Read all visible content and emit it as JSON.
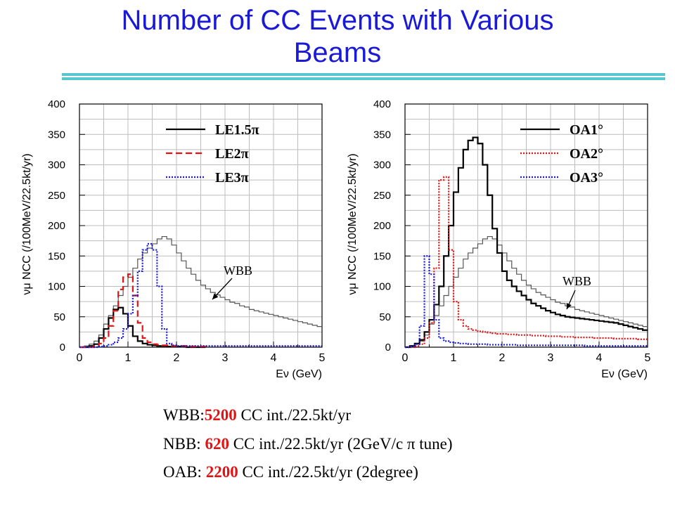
{
  "title": {
    "line1": "Number of CC Events with Various",
    "line2": "Beams"
  },
  "colors": {
    "title": "#1a1ad6",
    "rule": "#55c8cf",
    "highlight": "#e01414"
  },
  "chart_data": [
    {
      "type": "line",
      "xlabel": "Eν (GeV)",
      "ylabel": "νμ NCC (/100MeV/22.5kt/yr)",
      "xlim": [
        0,
        5
      ],
      "ylim": [
        0,
        400
      ],
      "xticks": [
        "0",
        "1",
        "2",
        "3",
        "4",
        "5"
      ],
      "yticks": [
        "0",
        "50",
        "100",
        "150",
        "200",
        "250",
        "300",
        "350",
        "400"
      ],
      "grid": true,
      "legend_position": "top-left",
      "annotation": "WBB",
      "series": [
        {
          "name": "WBB",
          "color": "#555555",
          "style": "solid",
          "x": [
            0,
            0.1,
            0.2,
            0.3,
            0.4,
            0.5,
            0.6,
            0.7,
            0.8,
            0.9,
            1.0,
            1.1,
            1.2,
            1.3,
            1.4,
            1.5,
            1.6,
            1.7,
            1.8,
            1.9,
            2.0,
            2.1,
            2.2,
            2.3,
            2.4,
            2.5,
            2.6,
            2.7,
            2.8,
            2.9,
            3.0,
            3.1,
            3.2,
            3.3,
            3.4,
            3.5,
            3.6,
            3.7,
            3.8,
            3.9,
            4.0,
            4.1,
            4.2,
            4.3,
            4.4,
            4.5,
            4.6,
            4.7,
            4.8,
            4.9
          ],
          "y": [
            0,
            2,
            5,
            10,
            20,
            38,
            52,
            68,
            85,
            100,
            115,
            130,
            145,
            155,
            163,
            170,
            178,
            182,
            178,
            168,
            155,
            142,
            130,
            120,
            110,
            102,
            96,
            90,
            86,
            82,
            78,
            74,
            72,
            68,
            66,
            62,
            60,
            58,
            56,
            54,
            52,
            50,
            48,
            46,
            44,
            42,
            40,
            38,
            36,
            34
          ]
        },
        {
          "name": "LE1.5π",
          "color": "#000000",
          "style": "solid",
          "x": [
            0,
            0.1,
            0.2,
            0.3,
            0.4,
            0.5,
            0.6,
            0.7,
            0.8,
            0.9,
            1.0,
            1.1,
            1.2,
            1.3,
            1.4,
            1.5,
            1.6,
            1.7,
            1.8,
            1.9,
            2.0,
            2.1,
            2.2,
            2.3,
            2.4,
            2.5
          ],
          "y": [
            0,
            0,
            2,
            5,
            15,
            30,
            48,
            62,
            65,
            55,
            35,
            18,
            10,
            6,
            4,
            3,
            2,
            2,
            1,
            1,
            1,
            1,
            0,
            0,
            0,
            0
          ]
        },
        {
          "name": "LE2π",
          "color": "#e01414",
          "style": "dashed",
          "x": [
            0,
            0.1,
            0.2,
            0.3,
            0.4,
            0.5,
            0.6,
            0.7,
            0.8,
            0.9,
            1.0,
            1.1,
            1.2,
            1.3,
            1.4,
            1.5,
            1.6,
            1.7,
            1.8,
            1.9,
            2.0,
            2.1,
            2.2,
            2.3,
            2.4,
            2.5
          ],
          "y": [
            0,
            0,
            0,
            2,
            6,
            15,
            35,
            60,
            95,
            115,
            120,
            85,
            40,
            15,
            8,
            5,
            4,
            3,
            3,
            2,
            2,
            2,
            1,
            1,
            1,
            1
          ]
        },
        {
          "name": "LE3π",
          "color": "#1a1ad6",
          "style": "dotted",
          "x": [
            0,
            0.1,
            0.2,
            0.3,
            0.4,
            0.5,
            0.6,
            0.7,
            0.8,
            0.9,
            1.0,
            1.1,
            1.2,
            1.3,
            1.4,
            1.5,
            1.6,
            1.7,
            1.8,
            1.9,
            2.0,
            2.1,
            2.2,
            2.3,
            2.4,
            2.5,
            2.6,
            2.7,
            2.8,
            2.9,
            3.0,
            3.1,
            3.2,
            3.3,
            3.4,
            3.5,
            3.6,
            3.7,
            3.8,
            3.9,
            4.0,
            4.1,
            4.2,
            4.3,
            4.4,
            4.5,
            4.6,
            4.7,
            4.8,
            4.9
          ],
          "y": [
            0,
            0,
            0,
            0,
            1,
            2,
            4,
            8,
            15,
            30,
            55,
            85,
            125,
            160,
            170,
            160,
            100,
            30,
            6,
            3,
            2,
            2,
            2,
            2,
            2,
            2,
            2,
            2,
            2,
            2,
            2,
            2,
            2,
            2,
            2,
            2,
            2,
            2,
            2,
            2,
            2,
            2,
            2,
            2,
            2,
            2,
            2,
            2,
            2,
            2
          ]
        }
      ]
    },
    {
      "type": "line",
      "xlabel": "Eν (GeV)",
      "ylabel": "νμ NCC (/100MeV/22.5kt/yr)",
      "xlim": [
        0,
        5
      ],
      "ylim": [
        0,
        400
      ],
      "xticks": [
        "0",
        "1",
        "2",
        "3",
        "4",
        "5"
      ],
      "yticks": [
        "0",
        "50",
        "100",
        "150",
        "200",
        "250",
        "300",
        "350",
        "400"
      ],
      "grid": true,
      "legend_position": "top-right",
      "annotation": "WBB",
      "series": [
        {
          "name": "WBB",
          "color": "#555555",
          "style": "solid",
          "x": [
            0,
            0.1,
            0.2,
            0.3,
            0.4,
            0.5,
            0.6,
            0.7,
            0.8,
            0.9,
            1.0,
            1.1,
            1.2,
            1.3,
            1.4,
            1.5,
            1.6,
            1.7,
            1.8,
            1.9,
            2.0,
            2.1,
            2.2,
            2.3,
            2.4,
            2.5,
            2.6,
            2.7,
            2.8,
            2.9,
            3.0,
            3.1,
            3.2,
            3.3,
            3.4,
            3.5,
            3.6,
            3.7,
            3.8,
            3.9,
            4.0,
            4.1,
            4.2,
            4.3,
            4.4,
            4.5,
            4.6,
            4.7,
            4.8,
            4.9
          ],
          "y": [
            0,
            2,
            5,
            10,
            20,
            38,
            52,
            68,
            85,
            100,
            115,
            130,
            145,
            155,
            163,
            170,
            178,
            182,
            178,
            168,
            155,
            142,
            130,
            120,
            110,
            102,
            96,
            90,
            86,
            82,
            78,
            74,
            72,
            68,
            66,
            62,
            60,
            58,
            56,
            54,
            52,
            50,
            48,
            46,
            44,
            42,
            40,
            38,
            36,
            34
          ]
        },
        {
          "name": "OA1°",
          "color": "#000000",
          "style": "solid",
          "x": [
            0,
            0.1,
            0.2,
            0.3,
            0.4,
            0.5,
            0.6,
            0.7,
            0.8,
            0.9,
            1.0,
            1.1,
            1.2,
            1.3,
            1.4,
            1.5,
            1.6,
            1.7,
            1.8,
            1.9,
            2.0,
            2.1,
            2.2,
            2.3,
            2.4,
            2.5,
            2.6,
            2.7,
            2.8,
            2.9,
            3.0,
            3.1,
            3.2,
            3.3,
            3.4,
            3.5,
            3.6,
            3.7,
            3.8,
            3.9,
            4.0,
            4.1,
            4.2,
            4.3,
            4.4,
            4.5,
            4.6,
            4.7,
            4.8,
            4.9
          ],
          "y": [
            0,
            2,
            6,
            12,
            25,
            45,
            70,
            100,
            150,
            200,
            255,
            295,
            325,
            340,
            345,
            335,
            300,
            250,
            195,
            155,
            125,
            110,
            100,
            92,
            85,
            78,
            72,
            68,
            64,
            60,
            57,
            54,
            52,
            50,
            49,
            48,
            47,
            46,
            45,
            44,
            43,
            42,
            41,
            40,
            38,
            36,
            34,
            32,
            30,
            28
          ]
        },
        {
          "name": "OA2°",
          "color": "#e01414",
          "style": "dotted",
          "x": [
            0,
            0.1,
            0.2,
            0.3,
            0.4,
            0.5,
            0.6,
            0.7,
            0.8,
            0.9,
            1.0,
            1.1,
            1.2,
            1.3,
            1.4,
            1.5,
            1.6,
            1.7,
            1.8,
            1.9,
            2.0,
            2.1,
            2.2,
            2.3,
            2.4,
            2.5,
            2.6,
            2.7,
            2.8,
            2.9,
            3.0,
            3.1,
            3.2,
            3.3,
            3.4,
            3.5,
            3.6,
            3.7,
            3.8,
            3.9,
            4.0,
            4.1,
            4.2,
            4.3,
            4.4,
            4.5,
            4.6,
            4.7,
            4.8,
            4.9
          ],
          "y": [
            0,
            0,
            2,
            5,
            15,
            40,
            130,
            275,
            280,
            160,
            75,
            45,
            35,
            30,
            28,
            26,
            25,
            24,
            23,
            22,
            22,
            21,
            21,
            20,
            20,
            20,
            19,
            19,
            19,
            18,
            18,
            18,
            17,
            17,
            17,
            16,
            16,
            16,
            16,
            15,
            15,
            15,
            15,
            14,
            14,
            14,
            14,
            14,
            13,
            13
          ]
        },
        {
          "name": "OA3°",
          "color": "#1a1ad6",
          "style": "dotted",
          "x": [
            0,
            0.1,
            0.2,
            0.3,
            0.4,
            0.5,
            0.6,
            0.7,
            0.8,
            0.9,
            1.0,
            1.1,
            1.2,
            1.3,
            1.4,
            1.5,
            1.6,
            1.7,
            1.8,
            1.9,
            2.0,
            2.1,
            2.2,
            2.3,
            2.4,
            2.5,
            2.6,
            2.7,
            2.8,
            2.9,
            3.0,
            3.1,
            3.2,
            3.3,
            3.4,
            3.5,
            3.6,
            3.7,
            3.8,
            3.9,
            4.0,
            4.1,
            4.2,
            4.3,
            4.4,
            4.5,
            4.6,
            4.7,
            4.8,
            4.9
          ],
          "y": [
            0,
            1,
            5,
            35,
            150,
            120,
            45,
            15,
            10,
            8,
            7,
            6,
            6,
            5,
            5,
            5,
            5,
            4,
            4,
            4,
            4,
            4,
            4,
            3,
            3,
            3,
            3,
            3,
            3,
            3,
            3,
            3,
            3,
            3,
            3,
            3,
            3,
            2,
            2,
            2,
            2,
            2,
            2,
            2,
            2,
            2,
            2,
            2,
            2,
            2
          ]
        }
      ]
    }
  ],
  "summary": [
    {
      "prefix": "WBB:",
      "value": "5200",
      "suffix": " CC int./22.5kt/yr"
    },
    {
      "prefix": "NBB: ",
      "value": "620",
      "suffix": " CC int./22.5kt/yr (2GeV/c π tune)"
    },
    {
      "prefix": "OAB: ",
      "value": "2200",
      "suffix": " CC int./22.5kt/yr (2degree)"
    }
  ]
}
